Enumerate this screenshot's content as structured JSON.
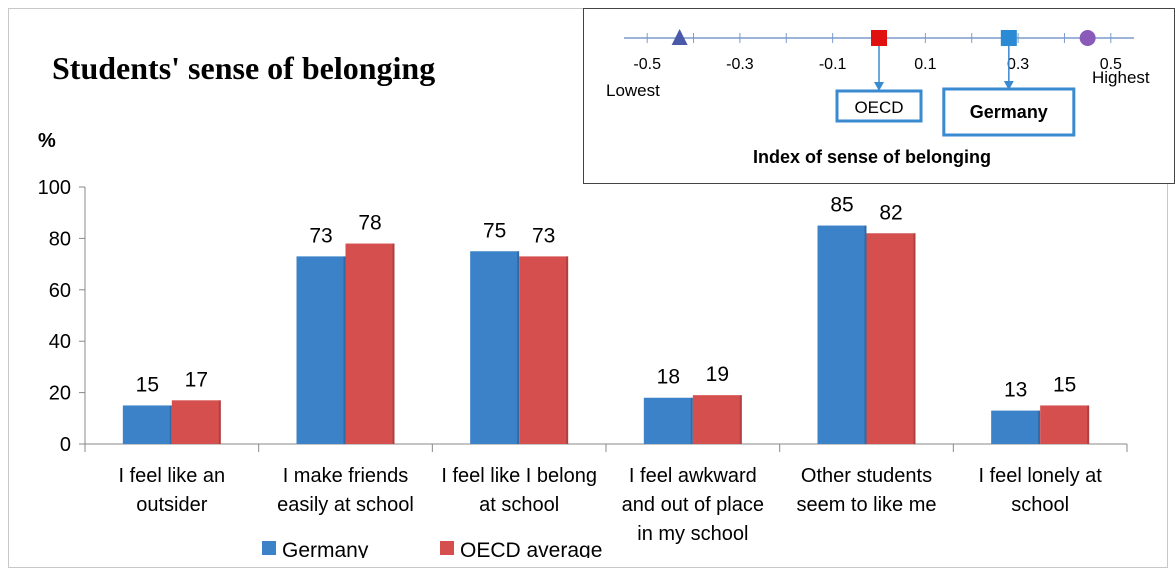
{
  "title": "Students' sense of belonging",
  "y_unit": "%",
  "chart_data": {
    "type": "bar",
    "title": "Students' sense of belonging",
    "ylabel": "%",
    "xlabel": "",
    "ylim": [
      0,
      100
    ],
    "yticks": [
      0,
      20,
      40,
      60,
      80,
      100
    ],
    "categories": [
      [
        "I feel like an",
        "outsider"
      ],
      [
        "I make friends",
        "easily at school"
      ],
      [
        "I feel like I belong",
        "at school"
      ],
      [
        "I feel awkward",
        "and out of place",
        "in my school"
      ],
      [
        "Other students",
        "seem to like me"
      ],
      [
        "I feel lonely at",
        "school"
      ]
    ],
    "series": [
      {
        "name": "Germany",
        "color": "#3c82c8",
        "values": [
          15,
          73,
          75,
          18,
          85,
          13
        ]
      },
      {
        "name": "OECD average",
        "color": "#d64f4f",
        "values": [
          17,
          78,
          73,
          19,
          82,
          15
        ]
      }
    ],
    "grid": false,
    "legend": "bottom"
  },
  "index_chart": {
    "title": "Index of sense of belonging",
    "ticks": [
      "-0.5",
      "-0.3",
      "-0.1",
      "0.1",
      "0.3",
      "0.5"
    ],
    "tick_values": [
      -0.5,
      -0.3,
      -0.1,
      0.1,
      0.3,
      0.5
    ],
    "lowest_label": "Lowest",
    "highest_label": "Highest",
    "markers": [
      {
        "name": "lowest",
        "value": -0.43,
        "shape": "triangle",
        "color": "#4a5aa8"
      },
      {
        "name": "oecd",
        "value": 0.0,
        "shape": "square",
        "color": "#e01010",
        "label": "OECD"
      },
      {
        "name": "germany",
        "value": 0.28,
        "shape": "square",
        "color": "#2a8ad4",
        "label": "Germany"
      },
      {
        "name": "highest",
        "value": 0.45,
        "shape": "circle",
        "color": "#8a5ab8"
      }
    ]
  }
}
